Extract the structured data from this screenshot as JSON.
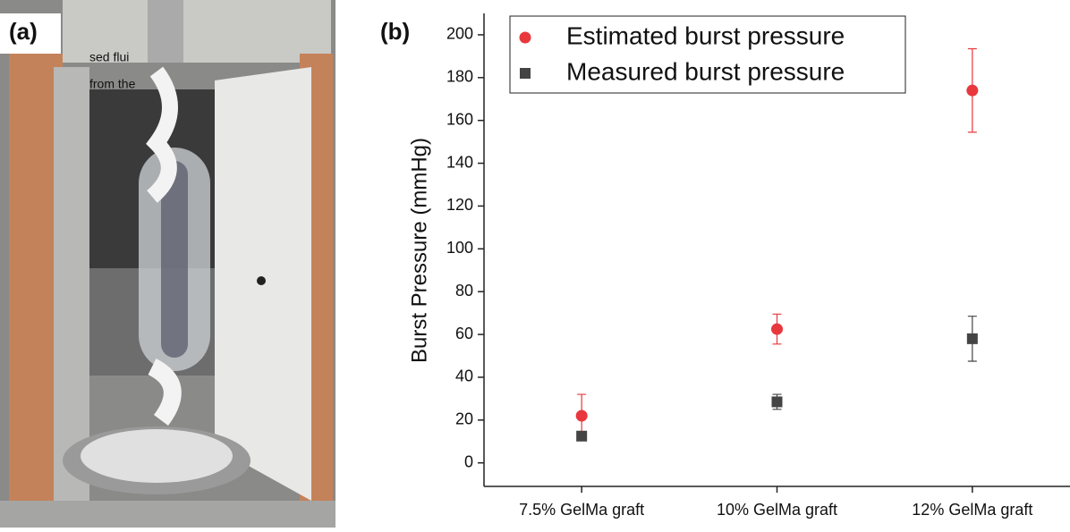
{
  "panel_labels": [
    "(a)",
    "(b)"
  ],
  "photo_text": [
    "sed flui",
    "from the"
  ],
  "chart_data": {
    "type": "scatter",
    "y_label": "Burst Pressure (mmHg)",
    "categories": [
      "7.5% GelMa graft",
      "10% GelMa graft",
      "12% GelMa graft"
    ],
    "series": [
      {
        "name": "Estimated burst pressure",
        "color": "#e8383d",
        "marker": "circle",
        "values": [
          22,
          62.5,
          174
        ],
        "errors": [
          10,
          7,
          19.5
        ]
      },
      {
        "name": "Measured burst pressure",
        "color": "#444444",
        "marker": "square",
        "values": [
          12.5,
          28.5,
          58
        ],
        "errors": [
          2,
          3.5,
          10.5
        ]
      }
    ],
    "ylim": [
      -11,
      210
    ],
    "yticks": [
      0,
      20,
      40,
      60,
      80,
      100,
      120,
      140,
      160,
      180,
      200
    ],
    "legend": "upper left"
  }
}
